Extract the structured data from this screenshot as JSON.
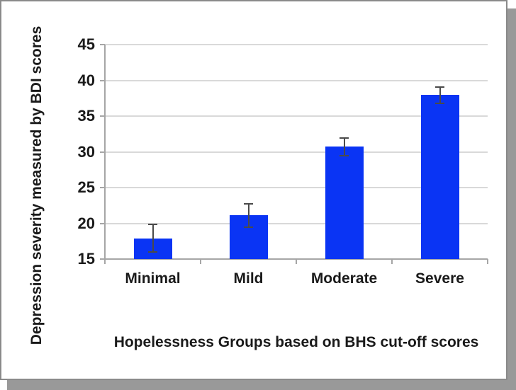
{
  "figure": {
    "background": "#ffffff",
    "border_color": "#8a8a8a",
    "shadow_color": "#999999"
  },
  "chart_data": {
    "type": "bar",
    "title": "",
    "xlabel": "Hopelessness Groups based on BHS cut-off scores",
    "ylabel": "Depression severity measured by BDI scores",
    "categories": [
      "Minimal",
      "Mild",
      "Moderate",
      "Severe"
    ],
    "values": [
      17.9,
      21.1,
      30.7,
      38.0
    ],
    "error_upper": [
      20.0,
      22.8,
      32.0,
      39.2
    ],
    "error_lower": [
      15.9,
      19.4,
      29.4,
      36.7
    ],
    "ylim": [
      15,
      45
    ],
    "yticks": [
      15,
      20,
      25,
      30,
      35,
      40,
      45
    ],
    "grid": true,
    "legend": false,
    "bar_color": "#0a34f4",
    "error_color": "#4a4a4a",
    "grid_color": "#d9d9d9",
    "axis_color": "#a6a6a6",
    "label_color": "#1a1a1a"
  }
}
